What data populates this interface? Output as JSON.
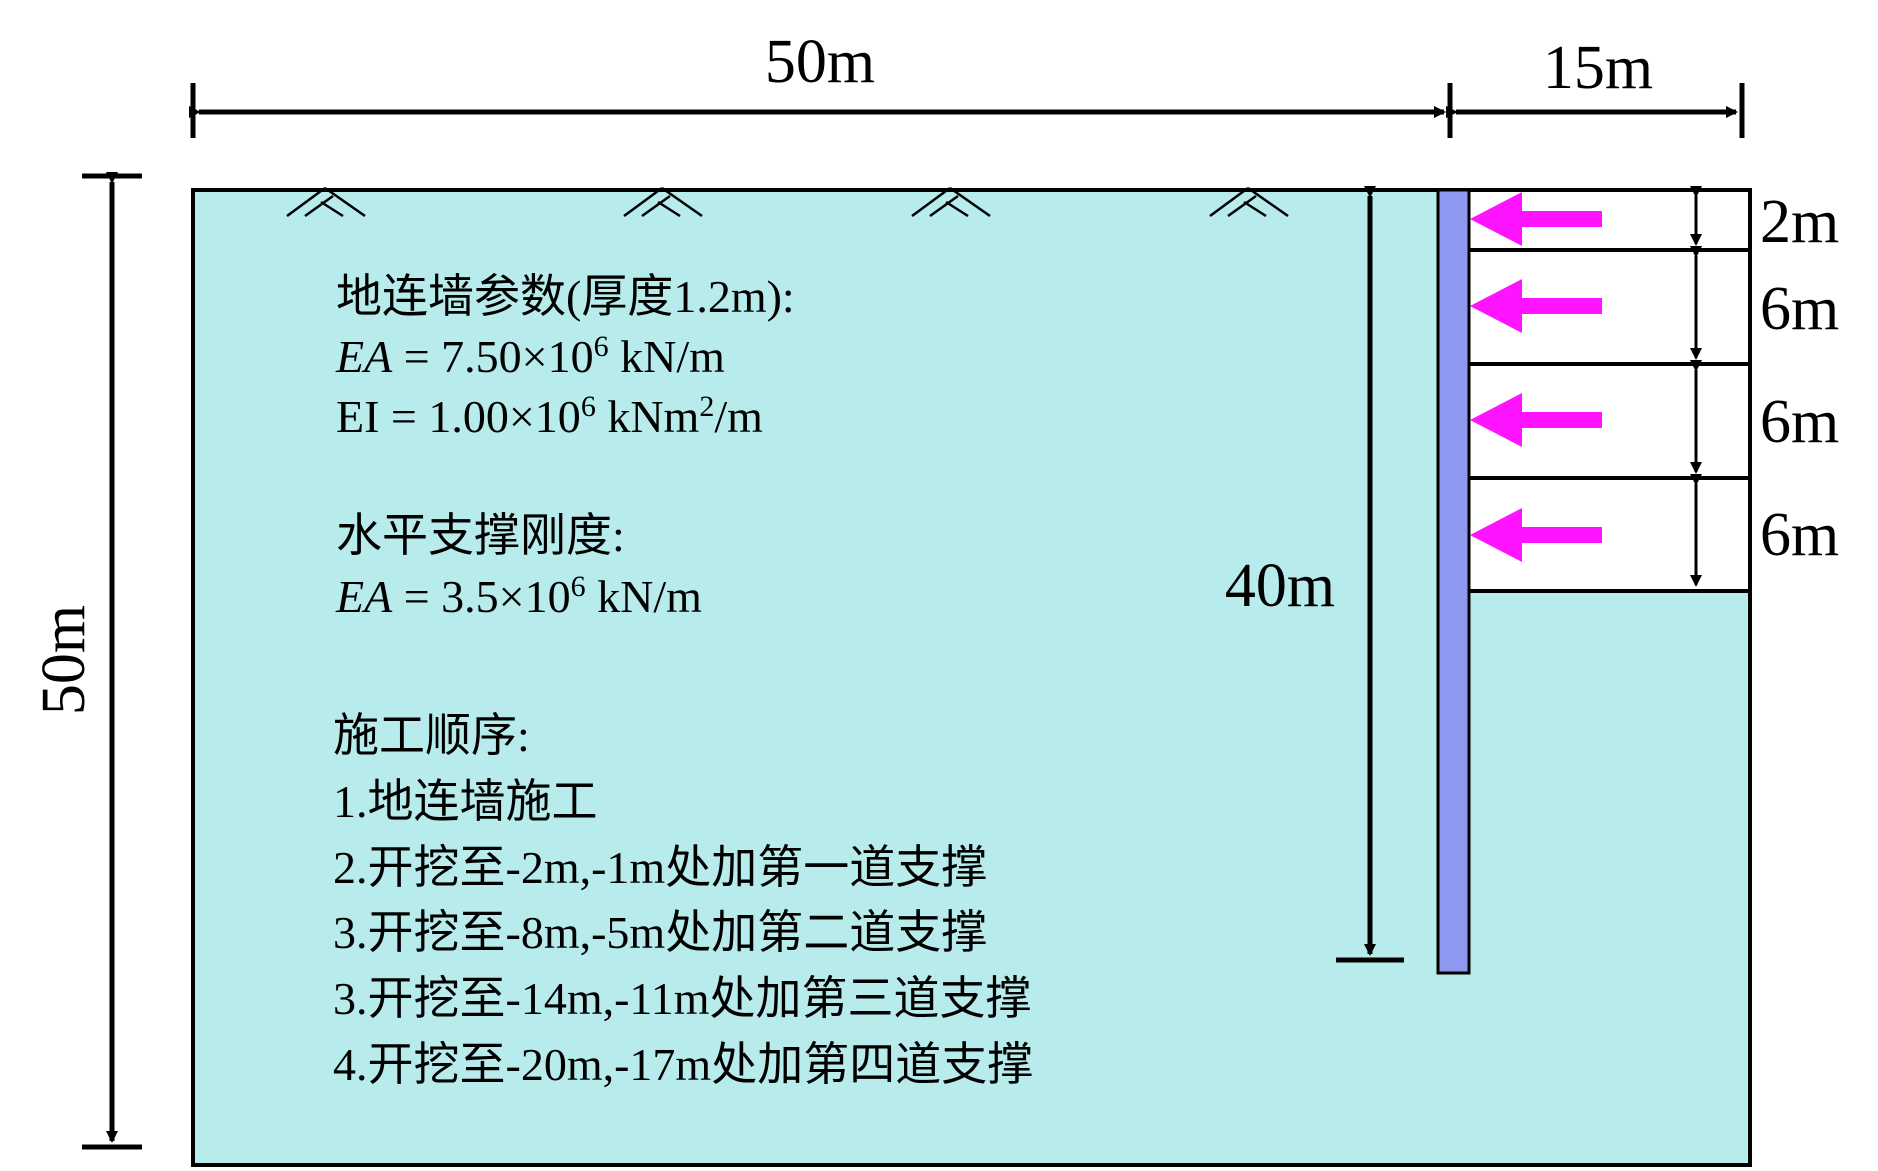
{
  "dimensions": {
    "top_left_width": "50m",
    "top_right_width": "15m",
    "left_height": "50m",
    "wall_depth": "40m",
    "support_spacings": [
      "2m",
      "6m",
      "6m",
      "6m"
    ]
  },
  "params": {
    "wall_heading": "地连墙参数(厚度1.2m):",
    "wall_ea_lhs": "EA",
    "wall_ea_rhs": " = 7.50×10",
    "wall_ea_exp": "6",
    "wall_ea_unit": " kN/m",
    "wall_ei_lhs": "EI = 1.00×10",
    "wall_ei_exp": "6",
    "wall_ei_unit": " kNm",
    "wall_ei_unit_exp": "2",
    "wall_ei_unit_tail": "/m",
    "strut_heading": "水平支撑刚度:",
    "strut_ea_lhs": "EA",
    "strut_ea_rhs": " = 3.5×10",
    "strut_ea_exp": "6",
    "strut_ea_unit": " kN/m"
  },
  "sequence": {
    "heading": "施工顺序:",
    "steps": [
      "1.地连墙施工",
      "2.开挖至-2m,-1m处加第一道支撑",
      "3.开挖至-8m,-5m处加第二道支撑",
      "3.开挖至-14m,-11m处加第三道支撑",
      "4.开挖至-20m,-17m处加第四道支撑"
    ]
  },
  "colors": {
    "soil": "#b8ecec",
    "wall": "#8f98f0",
    "strut_arrow": "#ff14ff",
    "line": "#000000"
  }
}
